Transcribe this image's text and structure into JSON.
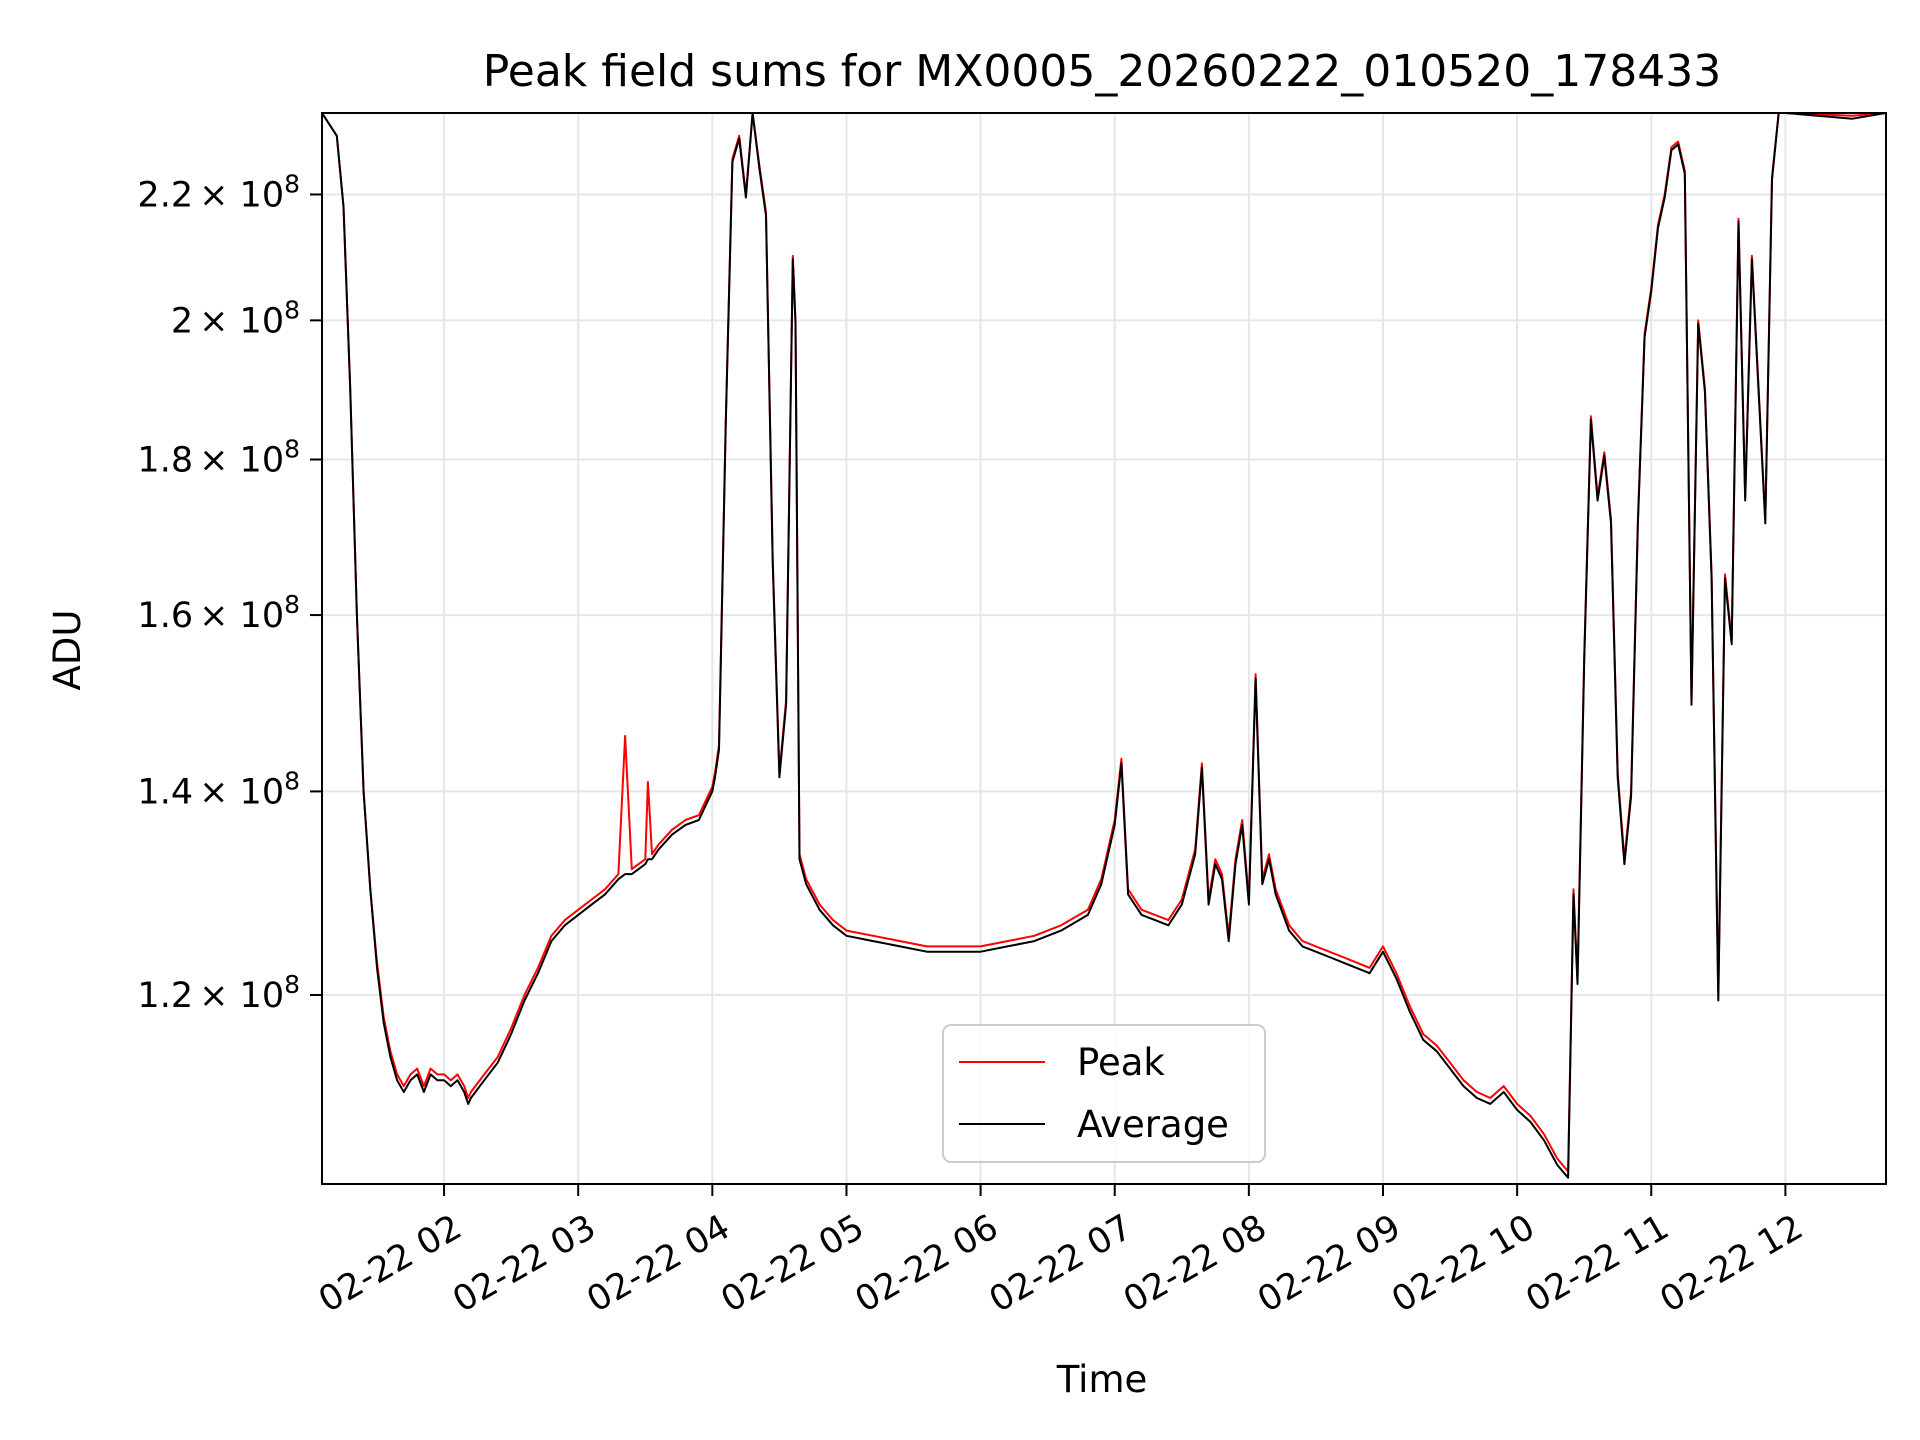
{
  "chart_data": {
    "type": "line",
    "title": "Peak field sums for MX0005_20260222_010520_178433",
    "xlabel": "Time",
    "ylabel": "ADU",
    "x_tick_labels": [
      "02-22 02",
      "02-22 03",
      "02-22 04",
      "02-22 05",
      "02-22 06",
      "02-22 07",
      "02-22 08",
      "02-22 09",
      "02-22 10",
      "02-22 11",
      "02-22 12"
    ],
    "x_tick_hours": [
      2,
      3,
      4,
      5,
      6,
      7,
      8,
      9,
      10,
      11,
      12
    ],
    "xlim_hours": [
      1.09,
      12.75
    ],
    "y_scale": "log",
    "ylim": [
      104000000,
      234000000
    ],
    "y_ticks": [
      {
        "value": 120000000,
        "mantissa": "1.2"
      },
      {
        "value": 140000000,
        "mantissa": "1.4"
      },
      {
        "value": 160000000,
        "mantissa": "1.6"
      },
      {
        "value": 180000000,
        "mantissa": "1.8"
      },
      {
        "value": 200000000,
        "mantissa": "2"
      },
      {
        "value": 220000000,
        "mantissa": "2.2"
      }
    ],
    "y_tick_base": "× 10",
    "y_tick_exponent": "8",
    "grid": true,
    "legend_position": "lower-center",
    "series": [
      {
        "name": "Peak",
        "color": "#ff0000",
        "x": [
          1.09,
          1.2,
          1.25,
          1.3,
          1.35,
          1.4,
          1.45,
          1.5,
          1.55,
          1.6,
          1.65,
          1.7,
          1.75,
          1.8,
          1.85,
          1.9,
          1.95,
          2.0,
          2.05,
          2.1,
          2.15,
          2.18,
          2.2,
          2.3,
          2.4,
          2.5,
          2.6,
          2.7,
          2.8,
          2.9,
          3.0,
          3.1,
          3.2,
          3.3,
          3.35,
          3.4,
          3.5,
          3.52,
          3.55,
          3.6,
          3.7,
          3.8,
          3.9,
          3.95,
          4.0,
          4.02,
          4.05,
          4.1,
          4.15,
          4.2,
          4.25,
          4.3,
          4.35,
          4.4,
          4.45,
          4.5,
          4.55,
          4.6,
          4.62,
          4.65,
          4.7,
          4.8,
          4.9,
          5.0,
          5.2,
          5.4,
          5.6,
          5.8,
          6.0,
          6.2,
          6.4,
          6.6,
          6.8,
          6.9,
          7.0,
          7.05,
          7.1,
          7.2,
          7.3,
          7.4,
          7.5,
          7.6,
          7.65,
          7.7,
          7.75,
          7.8,
          7.85,
          7.9,
          7.95,
          8.0,
          8.05,
          8.1,
          8.15,
          8.2,
          8.3,
          8.4,
          8.5,
          8.6,
          8.7,
          8.8,
          8.9,
          9.0,
          9.1,
          9.2,
          9.3,
          9.4,
          9.5,
          9.6,
          9.7,
          9.8,
          9.9,
          10.0,
          10.1,
          10.2,
          10.3,
          10.38,
          10.42,
          10.45,
          10.5,
          10.55,
          10.6,
          10.65,
          10.7,
          10.75,
          10.8,
          10.85,
          10.9,
          10.95,
          11.0,
          11.05,
          11.1,
          11.15,
          11.2,
          11.25,
          11.3,
          11.35,
          11.4,
          11.45,
          11.5,
          11.55,
          11.6,
          11.65,
          11.7,
          11.75,
          11.8,
          11.85,
          11.9,
          11.95,
          12.0,
          12.5,
          12.75
        ],
        "y": [
          234000000,
          230000000,
          218000000,
          190000000,
          160000000,
          140000000,
          130000000,
          123000000,
          118000000,
          115000000,
          113000000,
          112000000,
          113000000,
          113500000,
          112000000,
          113500000,
          113000000,
          113000000,
          112500000,
          113000000,
          112000000,
          111000000,
          111500000,
          113000000,
          114500000,
          117000000,
          120000000,
          122500000,
          125500000,
          127000000,
          128000000,
          129000000,
          130000000,
          131500000,
          146000000,
          132000000,
          133000000,
          141000000,
          133500000,
          134500000,
          136000000,
          137000000,
          137500000,
          139000000,
          140500000,
          142000000,
          145000000,
          185000000,
          226000000,
          230000000,
          220000000,
          234000000,
          225000000,
          217000000,
          167000000,
          142000000,
          150000000,
          210000000,
          200000000,
          133500000,
          131000000,
          128500000,
          127000000,
          126000000,
          125500000,
          125000000,
          124500000,
          124500000,
          124500000,
          125000000,
          125500000,
          126500000,
          128000000,
          131000000,
          137000000,
          143500000,
          130000000,
          128000000,
          127500000,
          127000000,
          129000000,
          134000000,
          143000000,
          129000000,
          133000000,
          131500000,
          125500000,
          133000000,
          137000000,
          129000000,
          153000000,
          131000000,
          133500000,
          130000000,
          126500000,
          125000000,
          124500000,
          124000000,
          123500000,
          123000000,
          122500000,
          124500000,
          122000000,
          119000000,
          116500000,
          115500000,
          114000000,
          112500000,
          111500000,
          111000000,
          112000000,
          110500000,
          109500000,
          108000000,
          106000000,
          105000000,
          130000000,
          121500000,
          155000000,
          186000000,
          175000000,
          181000000,
          172000000,
          142000000,
          133000000,
          140000000,
          172000000,
          198000000,
          205000000,
          215000000,
          220000000,
          228000000,
          229000000,
          224000000,
          150000000,
          200000000,
          190000000,
          165000000,
          120000000,
          165000000,
          157000000,
          216000000,
          175000000,
          210000000,
          190000000,
          172000000,
          223000000,
          234000000,
          234000000,
          233500000,
          234000000
        ]
      },
      {
        "name": "Average",
        "color": "#000000",
        "x": [
          1.09,
          1.2,
          1.25,
          1.3,
          1.35,
          1.4,
          1.45,
          1.5,
          1.55,
          1.6,
          1.65,
          1.7,
          1.75,
          1.8,
          1.85,
          1.9,
          1.95,
          2.0,
          2.05,
          2.1,
          2.15,
          2.18,
          2.2,
          2.3,
          2.4,
          2.5,
          2.6,
          2.7,
          2.8,
          2.9,
          3.0,
          3.1,
          3.2,
          3.3,
          3.35,
          3.4,
          3.5,
          3.52,
          3.55,
          3.6,
          3.7,
          3.8,
          3.9,
          3.95,
          4.0,
          4.02,
          4.05,
          4.1,
          4.15,
          4.2,
          4.25,
          4.3,
          4.35,
          4.4,
          4.45,
          4.5,
          4.55,
          4.6,
          4.62,
          4.65,
          4.7,
          4.8,
          4.9,
          5.0,
          5.2,
          5.4,
          5.6,
          5.8,
          6.0,
          6.2,
          6.4,
          6.6,
          6.8,
          6.9,
          7.0,
          7.05,
          7.1,
          7.2,
          7.3,
          7.4,
          7.5,
          7.6,
          7.65,
          7.7,
          7.75,
          7.8,
          7.85,
          7.9,
          7.95,
          8.0,
          8.05,
          8.1,
          8.15,
          8.2,
          8.3,
          8.4,
          8.5,
          8.6,
          8.7,
          8.8,
          8.9,
          9.0,
          9.1,
          9.2,
          9.3,
          9.4,
          9.5,
          9.6,
          9.7,
          9.8,
          9.9,
          10.0,
          10.1,
          10.2,
          10.3,
          10.38,
          10.42,
          10.45,
          10.5,
          10.55,
          10.6,
          10.65,
          10.7,
          10.75,
          10.8,
          10.85,
          10.9,
          10.95,
          11.0,
          11.05,
          11.1,
          11.15,
          11.2,
          11.25,
          11.3,
          11.35,
          11.4,
          11.45,
          11.5,
          11.55,
          11.6,
          11.65,
          11.7,
          11.75,
          11.8,
          11.85,
          11.9,
          11.95,
          12.0,
          12.5,
          12.75
        ],
        "y": [
          234000000,
          230000000,
          218000000,
          190000000,
          160000000,
          140000000,
          130000000,
          122500000,
          117500000,
          114500000,
          112500000,
          111500000,
          112500000,
          113000000,
          111500000,
          113000000,
          112500000,
          112500000,
          112000000,
          112500000,
          111500000,
          110500000,
          111000000,
          112500000,
          114000000,
          116500000,
          119500000,
          122000000,
          125000000,
          126500000,
          127500000,
          128500000,
          129500000,
          131000000,
          131500000,
          131500000,
          132500000,
          133000000,
          133000000,
          134000000,
          135500000,
          136500000,
          137000000,
          138500000,
          140000000,
          141500000,
          144500000,
          184500000,
          225500000,
          229500000,
          219500000,
          234000000,
          224500000,
          216500000,
          166500000,
          141500000,
          149500000,
          209500000,
          199500000,
          133000000,
          130500000,
          128000000,
          126500000,
          125500000,
          125000000,
          124500000,
          124000000,
          124000000,
          124000000,
          124500000,
          125000000,
          126000000,
          127500000,
          130500000,
          136500000,
          143000000,
          129500000,
          127500000,
          127000000,
          126500000,
          128500000,
          133500000,
          142500000,
          128500000,
          132500000,
          131000000,
          125000000,
          132500000,
          136500000,
          128500000,
          152500000,
          130500000,
          133000000,
          129500000,
          126000000,
          124500000,
          124000000,
          123500000,
          123000000,
          122500000,
          122000000,
          124000000,
          121500000,
          118500000,
          116000000,
          115000000,
          113500000,
          112000000,
          111000000,
          110500000,
          111500000,
          110000000,
          109000000,
          107500000,
          105500000,
          104500000,
          129500000,
          121000000,
          154500000,
          185500000,
          174500000,
          180500000,
          171500000,
          141500000,
          132500000,
          139500000,
          171500000,
          197500000,
          204500000,
          214500000,
          219500000,
          227500000,
          228500000,
          223500000,
          149500000,
          199500000,
          189500000,
          164500000,
          119500000,
          164500000,
          156500000,
          215500000,
          174500000,
          209500000,
          189500000,
          171500000,
          222500000,
          234000000,
          234000000,
          233000000,
          234000000
        ]
      }
    ]
  }
}
